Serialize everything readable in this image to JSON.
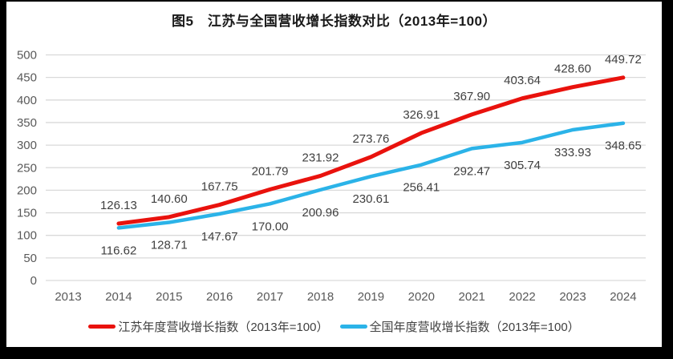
{
  "title": "图5　江苏与全国营收增长指数对比（2013年=100）",
  "chart_data": {
    "type": "line",
    "title": "图5　江苏与全国营收增长指数对比（2013年=100）",
    "categories": [
      "2013",
      "2014",
      "2015",
      "2016",
      "2017",
      "2018",
      "2019",
      "2020",
      "2021",
      "2022",
      "2023",
      "2024"
    ],
    "data_start_category": "2014",
    "series": [
      {
        "name": "江苏年度营收增长指数（2013年=100）",
        "color": "#e9120d",
        "values": [
          126.13,
          140.6,
          167.75,
          201.79,
          231.92,
          273.76,
          326.91,
          367.9,
          403.64,
          428.6,
          449.72
        ]
      },
      {
        "name": "全国年度营收增长指数（2013年=100）",
        "color": "#2bb3e8",
        "values": [
          116.62,
          128.71,
          147.67,
          170.0,
          200.96,
          230.61,
          256.41,
          292.47,
          305.74,
          333.93,
          348.65
        ]
      }
    ],
    "ylim": [
      0,
      500
    ],
    "ytick_step": 50,
    "yticks": [
      0,
      50,
      100,
      150,
      200,
      250,
      300,
      350,
      400,
      450,
      500
    ],
    "grid": true,
    "legend_position": "bottom",
    "data_labels": true
  },
  "colors": {
    "jiangsu": "#e9120d",
    "national": "#2bb3e8",
    "gridline": "#d9d9d9",
    "axis_text": "#595959",
    "label_text": "#3f3f3f",
    "title_text": "#1a1a1a",
    "frame": "#000000",
    "background": "#ffffff"
  }
}
